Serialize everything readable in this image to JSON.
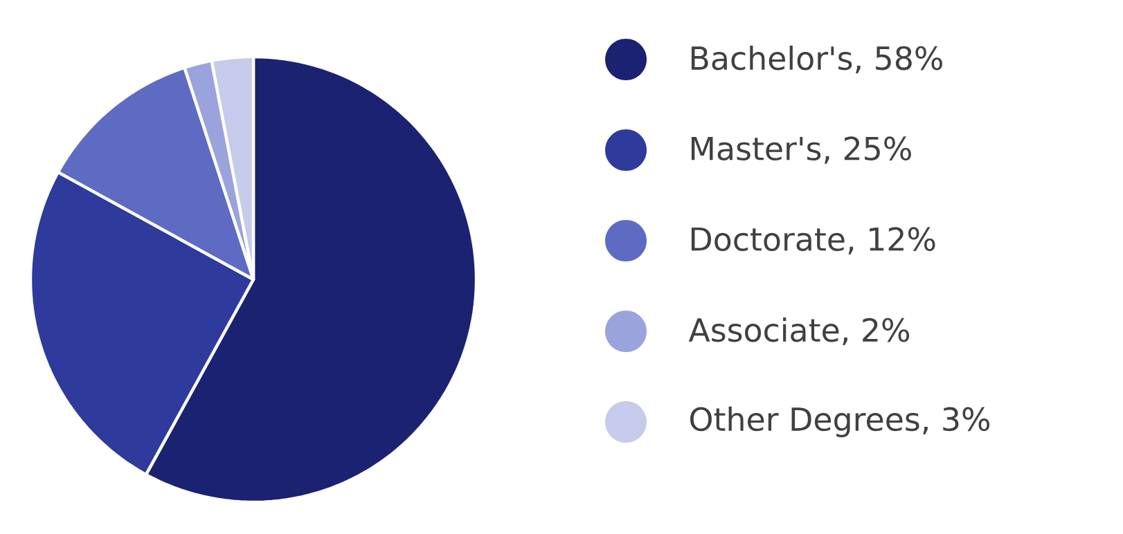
{
  "chart_data": {
    "type": "pie",
    "categories": [
      "Bachelor's, 58%",
      "Master's, 25%",
      "Doctorate, 12%",
      "Associate, 2%",
      "Other Degrees, 3%"
    ],
    "values": [
      58,
      25,
      12,
      2,
      3
    ],
    "colors": [
      "#1b2272",
      "#2e3a9c",
      "#5e6bc2",
      "#9aa3dc",
      "#c6cbeb"
    ],
    "legend": "right"
  }
}
